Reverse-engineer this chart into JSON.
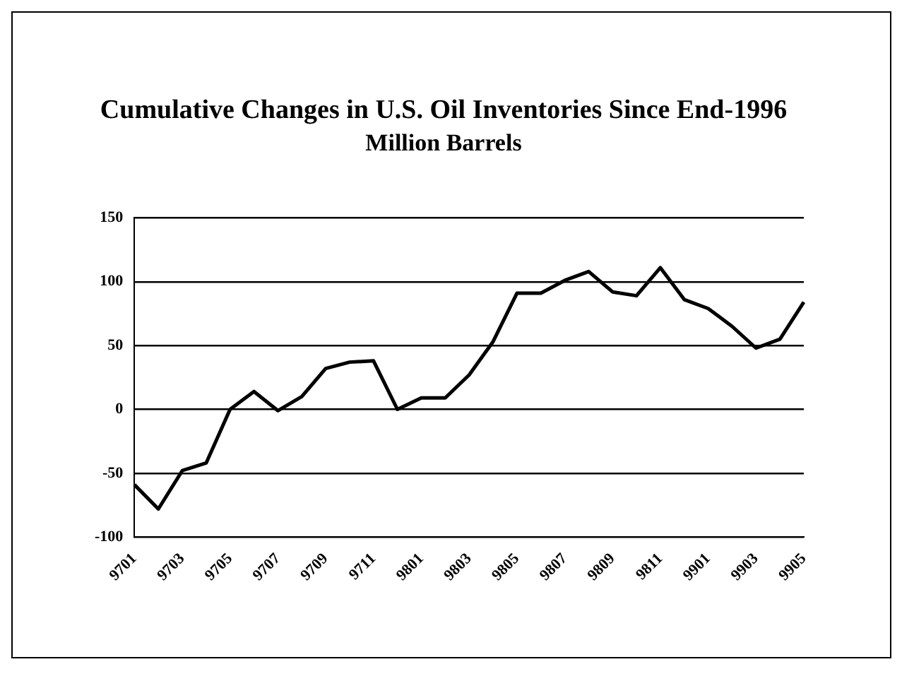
{
  "chart_data": {
    "type": "line",
    "title": "Cumulative Changes in U.S. Oil Inventories Since End-1996",
    "subtitle": "Million Barrels",
    "categories": [
      "9701",
      null,
      "9703",
      null,
      "9705",
      null,
      "9707",
      null,
      "9709",
      null,
      "9711",
      null,
      "9801",
      null,
      "9803",
      null,
      "9805",
      null,
      "9807",
      null,
      "9809",
      null,
      "9811",
      null,
      "9901",
      null,
      "9903",
      null,
      "9905"
    ],
    "series": [
      {
        "color": "#000000",
        "values": [
          -59,
          -78,
          -48,
          -42,
          0,
          14,
          -1,
          10,
          32,
          37,
          38,
          0,
          9,
          9,
          27,
          53,
          91,
          91,
          101,
          108,
          92,
          89,
          111,
          86,
          79,
          65,
          48,
          55,
          84
        ]
      }
    ],
    "ylim": [
      -100,
      150
    ],
    "yticks": [
      -100,
      -50,
      0,
      50,
      100,
      150
    ],
    "grid": "y",
    "legend": false,
    "marker": "none",
    "line_style": "solid"
  }
}
